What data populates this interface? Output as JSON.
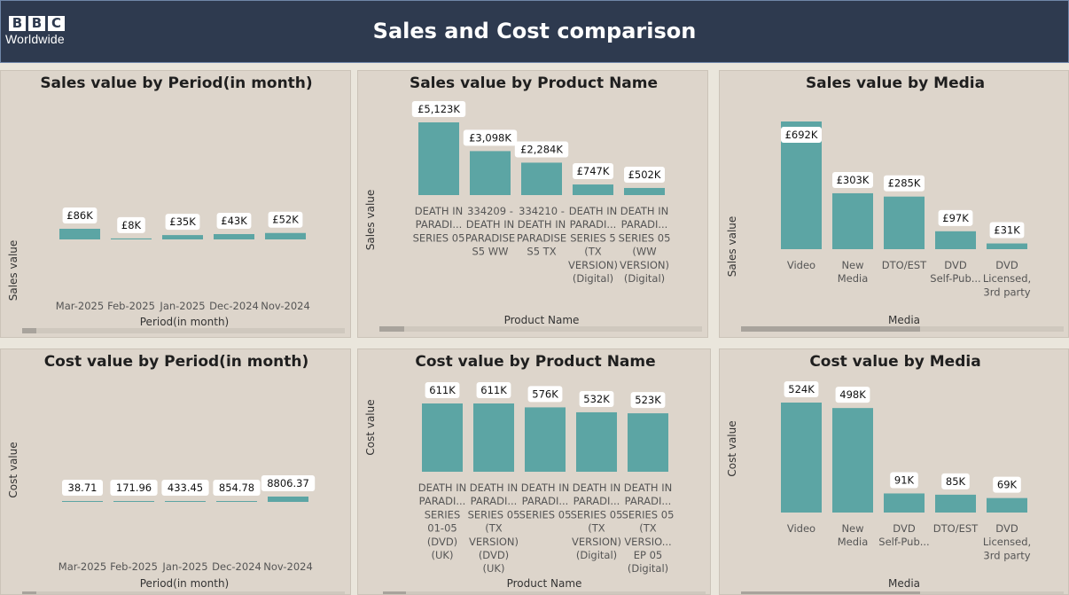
{
  "header": {
    "title": "Sales and Cost comparison",
    "logo_letters": [
      "B",
      "B",
      "C"
    ],
    "logo_sub": "Worldwide",
    "background": "#2e3a4f"
  },
  "colors": {
    "bar": "#5ca5a4",
    "panel": "#ddd5cb",
    "page": "#eae6dc"
  },
  "chart_data": [
    {
      "id": "sales-period",
      "type": "bar",
      "title": "Sales value by Period(in month)",
      "xlabel": "Period(in month)",
      "ylabel": "Sales value",
      "categories": [
        [
          "Mar-2025"
        ],
        [
          "Feb-2025"
        ],
        [
          "Jan-2025"
        ],
        [
          "Dec-2024"
        ],
        [
          "Nov-2024"
        ]
      ],
      "values": [
        86,
        8,
        35,
        43,
        52
      ],
      "value_labels": [
        "£86K",
        "£8K",
        "£35K",
        "£43K",
        "£52K"
      ],
      "unit": "£K",
      "scrollbar": true
    },
    {
      "id": "sales-product",
      "type": "bar",
      "title": "Sales value by Product Name",
      "xlabel": "Product Name",
      "ylabel": "Sales value",
      "categories": [
        [
          "DEATH IN",
          "PARADI...",
          "SERIES 05"
        ],
        [
          "334209 -",
          "DEATH IN",
          "PARADISE",
          "S5 WW"
        ],
        [
          "334210 -",
          "DEATH IN",
          "PARADISE",
          "S5 TX"
        ],
        [
          "DEATH IN",
          "PARADI...",
          "SERIES 5",
          "(TX",
          "VERSION)",
          "(Digital)"
        ],
        [
          "DEATH IN",
          "PARADI...",
          "SERIES 05",
          "(WW",
          "VERSION)",
          "(Digital)"
        ]
      ],
      "values": [
        5123,
        3098,
        2284,
        747,
        502
      ],
      "value_labels": [
        "£5,123K",
        "£3,098K",
        "£2,284K",
        "£747K",
        "£502K"
      ],
      "unit": "£K",
      "scrollbar": true
    },
    {
      "id": "sales-media",
      "type": "bar",
      "title": "Sales value by Media",
      "xlabel": "Media",
      "ylabel": "Sales value",
      "categories": [
        [
          "Video"
        ],
        [
          "New",
          "Media"
        ],
        [
          "DTO/EST"
        ],
        [
          "DVD",
          "Self-Pub..."
        ],
        [
          "DVD",
          "Licensed,",
          "3rd party"
        ]
      ],
      "values": [
        692,
        303,
        285,
        97,
        31
      ],
      "value_labels": [
        "£692K",
        "£303K",
        "£285K",
        "£97K",
        "£31K"
      ],
      "unit": "£K",
      "scrollbar": true
    },
    {
      "id": "cost-period",
      "type": "bar",
      "title": "Cost value by Period(in month)",
      "xlabel": "Period(in month)",
      "ylabel": "Cost value",
      "categories": [
        [
          "Mar-2025"
        ],
        [
          "Feb-2025"
        ],
        [
          "Jan-2025"
        ],
        [
          "Dec-2024"
        ],
        [
          "Nov-2024"
        ]
      ],
      "values": [
        38.71,
        171.96,
        433.45,
        854.78,
        8806.37
      ],
      "value_labels": [
        "38.71",
        "171.96",
        "433.45",
        "854.78",
        "8806.37"
      ],
      "scrollbar": true
    },
    {
      "id": "cost-product",
      "type": "bar",
      "title": "Cost value by Product Name",
      "xlabel": "Product Name",
      "ylabel": "Cost value",
      "categories": [
        [
          "DEATH IN",
          "PARADI...",
          "SERIES",
          "01-05",
          "(DVD)",
          "(UK)"
        ],
        [
          "DEATH IN",
          "PARADI...",
          "SERIES 05",
          "(TX",
          "VERSION)",
          "(DVD)",
          "(UK)"
        ],
        [
          "DEATH IN",
          "PARADI...",
          "SERIES 05"
        ],
        [
          "DEATH IN",
          "PARADI...",
          "SERIES 05",
          "(TX",
          "VERSION)",
          "(Digital)"
        ],
        [
          "DEATH IN",
          "PARADI...",
          "SERIES 05",
          "(TX",
          "VERSIO...",
          "EP 05",
          "(Digital)"
        ]
      ],
      "values": [
        611,
        611,
        576,
        532,
        523
      ],
      "value_labels": [
        "611K",
        "611K",
        "576K",
        "532K",
        "523K"
      ],
      "unit": "K",
      "scrollbar": true
    },
    {
      "id": "cost-media",
      "type": "bar",
      "title": "Cost value by Media",
      "xlabel": "Media",
      "ylabel": "Cost value",
      "categories": [
        [
          "Video"
        ],
        [
          "New",
          "Media"
        ],
        [
          "DVD",
          "Self-Pub..."
        ],
        [
          "DTO/EST"
        ],
        [
          "DVD",
          "Licensed,",
          "3rd party"
        ]
      ],
      "values": [
        524,
        498,
        91,
        85,
        69
      ],
      "value_labels": [
        "524K",
        "498K",
        "91K",
        "85K",
        "69K"
      ],
      "unit": "K",
      "scrollbar": true
    }
  ]
}
